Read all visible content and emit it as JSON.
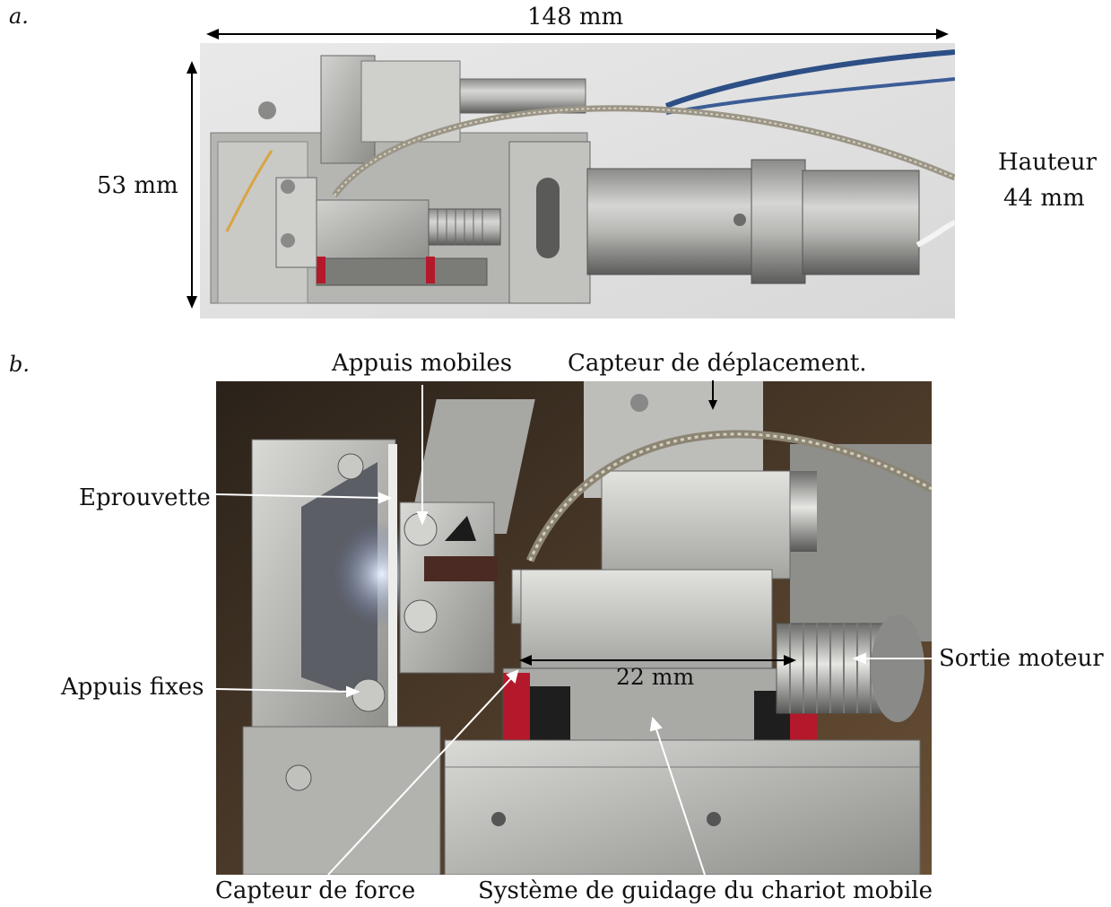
{
  "panels": {
    "a": {
      "letter": "a.",
      "width_label": "148 mm",
      "height_label": "53 mm",
      "hauteur_title": "Hauteur",
      "hauteur_value": "44 mm"
    },
    "b": {
      "letter": "b.",
      "labels": {
        "appuis_mobiles": "Appuis mobiles",
        "capteur_deplacement": "Capteur de déplacement.",
        "eprouvette": "Eprouvette",
        "appuis_fixes": "Appuis fixes",
        "sortie_moteur": "Sortie moteur",
        "capteur_force": "Capteur de force",
        "systeme_guidage": "Système de guidage du chariot mobile",
        "dimension_22": "22 mm"
      }
    }
  },
  "colors": {
    "background": "#ffffff",
    "text": "#111111",
    "arrow": "#000000",
    "pointer": "#ffffff",
    "metal_light": "#c8c8c6",
    "metal_dark": "#6f6f6c",
    "backdrop_b": "#3a2f24",
    "rail_red": "#b3192a",
    "cable_blue": "#2d4f86"
  }
}
